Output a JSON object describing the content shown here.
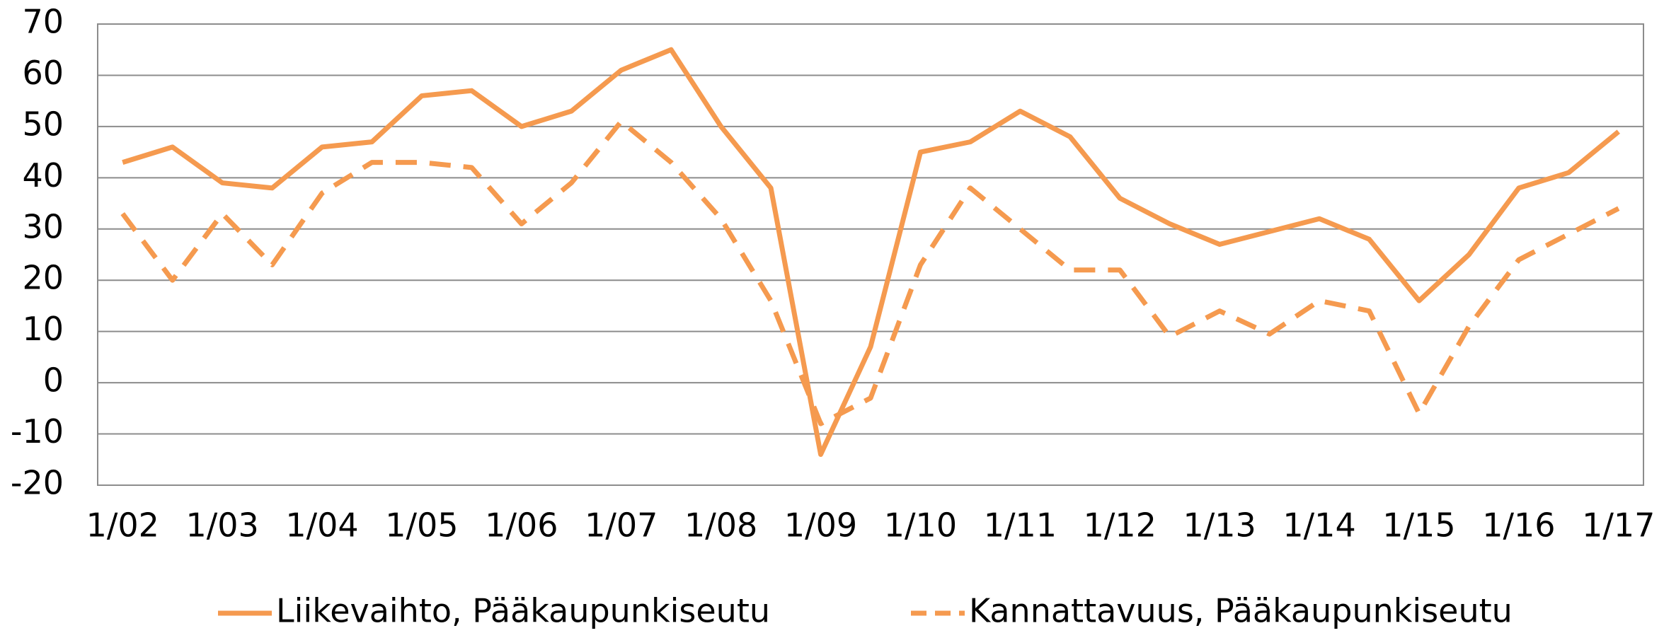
{
  "chart_data": {
    "type": "line",
    "categories": [
      "1/02",
      null,
      "1/03",
      null,
      "1/04",
      null,
      "1/05",
      null,
      "1/06",
      null,
      "1/07",
      null,
      "1/08",
      null,
      "1/09",
      null,
      "1/10",
      null,
      "1/11",
      null,
      "1/12",
      null,
      "1/13",
      null,
      "1/14",
      null,
      "1/15",
      null,
      "1/16",
      null,
      "1/17"
    ],
    "series": [
      {
        "name": "Liikevaihto, Pääkaupunkiseutu",
        "color": "#f59a4f",
        "style": "solid",
        "values": [
          43,
          46,
          39,
          38,
          46,
          47,
          56,
          57,
          50,
          53,
          61,
          65,
          50,
          38,
          -14,
          7,
          45,
          47,
          53,
          48,
          36,
          31,
          27,
          29.5,
          32,
          28,
          16,
          25,
          38,
          41,
          49
        ]
      },
      {
        "name": "Kannattavuus, Pääkaupunkiseutu",
        "color": "#f59a4f",
        "style": "dashed",
        "values": [
          33,
          20,
          33,
          23,
          37,
          43,
          43,
          42,
          31,
          39,
          51,
          43,
          32,
          16,
          -8,
          -3,
          23,
          38,
          30,
          22,
          22,
          9,
          14,
          9.5,
          16,
          14,
          -6,
          11,
          24,
          29,
          34
        ]
      }
    ],
    "ylim": [
      -20,
      70
    ],
    "yticks": [
      -20,
      -10,
      0,
      10,
      20,
      30,
      40,
      50,
      60,
      70
    ],
    "grid": true,
    "legend": "bottom"
  }
}
